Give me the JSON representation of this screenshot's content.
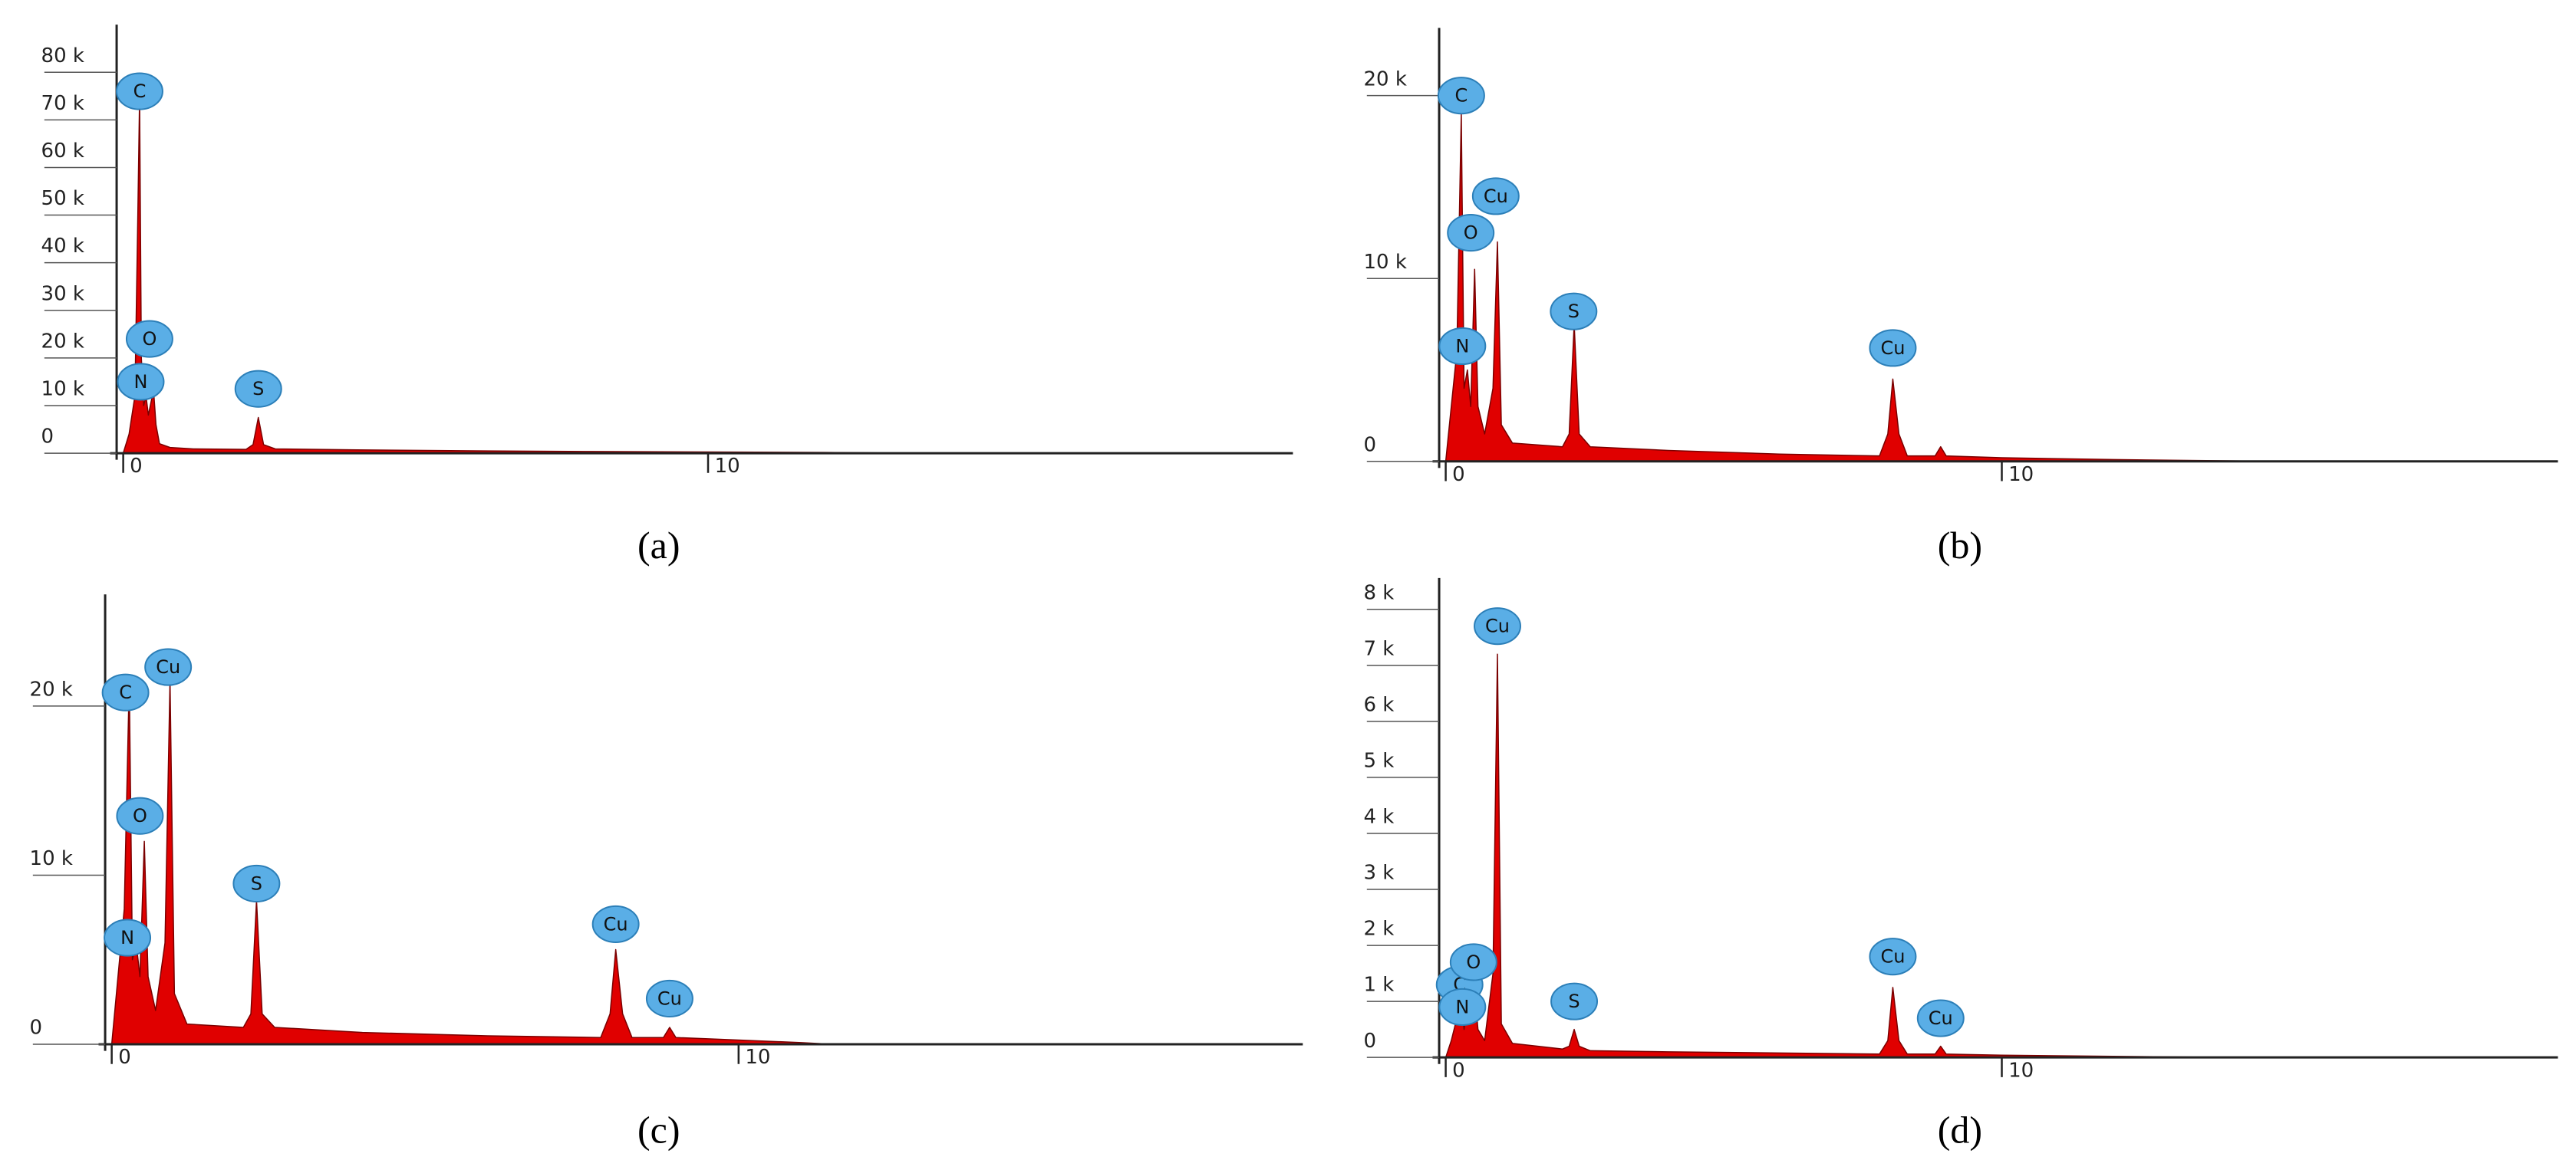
{
  "chart_data": [
    {
      "type": "area",
      "label": "(a)",
      "color": "#e00000",
      "x": [
        0,
        0.1,
        0.2,
        0.25,
        0.28,
        0.31,
        0.35,
        0.39,
        0.43,
        0.48,
        0.52,
        0.56,
        0.62,
        0.8,
        1.2,
        2.1,
        2.22,
        2.31,
        2.4,
        2.6,
        4,
        6,
        8,
        10,
        12,
        13.5
      ],
      "values": [
        0,
        4000,
        12000,
        50000,
        75000,
        20000,
        10000,
        12000,
        8000,
        11000,
        13000,
        6000,
        2000,
        1200,
        900,
        800,
        1800,
        7500,
        1800,
        900,
        700,
        500,
        350,
        250,
        150,
        0
      ],
      "xlim": [
        0,
        20
      ],
      "xticks": [
        0,
        10
      ],
      "ylim": [
        0,
        90000
      ],
      "yticks": [
        0,
        {
          "value": 10000,
          "label": "10 k"
        },
        {
          "value": 20000,
          "label": "20 k"
        },
        {
          "value": 30000,
          "label": "30 k"
        },
        {
          "value": 40000,
          "label": "40 k"
        },
        {
          "value": 50000,
          "label": "50 k"
        },
        {
          "value": 60000,
          "label": "60 k"
        },
        {
          "value": 70000,
          "label": "70 k"
        },
        {
          "value": 80000,
          "label": "80 k"
        }
      ],
      "annotations": [
        {
          "text": "C",
          "x": 0.28,
          "y": 76000
        },
        {
          "text": "O",
          "x": 0.45,
          "y": 24000
        },
        {
          "text": "N",
          "x": 0.3,
          "y": 15000
        },
        {
          "text": "S",
          "x": 2.31,
          "y": 13500
        }
      ]
    },
    {
      "type": "area",
      "label": "(b)",
      "color": "#e00000",
      "x": [
        0,
        0.1,
        0.2,
        0.28,
        0.33,
        0.39,
        0.45,
        0.52,
        0.58,
        0.7,
        0.85,
        0.93,
        1.0,
        1.2,
        2.1,
        2.22,
        2.31,
        2.4,
        2.6,
        4,
        6,
        7.8,
        7.95,
        8.04,
        8.15,
        8.3,
        8.8,
        8.9,
        9.0,
        10,
        12,
        15
      ],
      "values": [
        0,
        3000,
        6000,
        19000,
        4000,
        5000,
        3000,
        10500,
        3000,
        1500,
        4000,
        12000,
        2000,
        1000,
        800,
        1500,
        7500,
        1500,
        800,
        600,
        400,
        300,
        1500,
        4500,
        1500,
        300,
        300,
        800,
        300,
        200,
        100,
        0
      ],
      "xlim": [
        0,
        20
      ],
      "xticks": [
        0,
        10
      ],
      "ylim": [
        0,
        23700
      ],
      "yticks": [
        0,
        {
          "value": 10000,
          "label": "10 k"
        },
        {
          "value": 20000,
          "label": "20 k"
        }
      ],
      "annotations": [
        {
          "text": "C",
          "x": 0.28,
          "y": 20000
        },
        {
          "text": "Cu",
          "x": 0.9,
          "y": 14500
        },
        {
          "text": "O",
          "x": 0.45,
          "y": 12500
        },
        {
          "text": "N",
          "x": 0.3,
          "y": 6300
        },
        {
          "text": "S",
          "x": 2.3,
          "y": 8200
        },
        {
          "text": "Cu",
          "x": 8.04,
          "y": 6200
        }
      ]
    },
    {
      "type": "area",
      "label": "(c)",
      "color": "#e00000",
      "x": [
        0,
        0.1,
        0.2,
        0.28,
        0.33,
        0.39,
        0.45,
        0.52,
        0.58,
        0.7,
        0.85,
        0.93,
        1.0,
        1.2,
        2.1,
        2.22,
        2.31,
        2.4,
        2.6,
        4,
        6,
        7.8,
        7.95,
        8.04,
        8.15,
        8.3,
        8.8,
        8.9,
        9.0,
        10,
        11,
        11.5
      ],
      "values": [
        0,
        4000,
        8000,
        21500,
        5000,
        6000,
        4000,
        12000,
        4000,
        2000,
        6000,
        21500,
        3000,
        1200,
        1000,
        1800,
        8500,
        1800,
        1000,
        700,
        500,
        400,
        1800,
        5600,
        1800,
        400,
        400,
        1000,
        400,
        250,
        100,
        0
      ],
      "xlim": [
        0,
        19
      ],
      "xticks": [
        0,
        10
      ],
      "ylim": [
        0,
        26600
      ],
      "yticks": [
        0,
        {
          "value": 10000,
          "label": "10 k"
        },
        {
          "value": 20000,
          "label": "20 k"
        }
      ],
      "annotations": [
        {
          "text": "C",
          "x": 0.22,
          "y": 20800
        },
        {
          "text": "Cu",
          "x": 0.9,
          "y": 22300
        },
        {
          "text": "O",
          "x": 0.45,
          "y": 13500
        },
        {
          "text": "N",
          "x": 0.25,
          "y": 6300
        },
        {
          "text": "S",
          "x": 2.31,
          "y": 9500
        },
        {
          "text": "Cu",
          "x": 8.04,
          "y": 7100
        },
        {
          "text": "Cu",
          "x": 8.9,
          "y": 2700
        }
      ]
    },
    {
      "type": "area",
      "label": "(d)",
      "color": "#e00000",
      "x": [
        0,
        0.1,
        0.2,
        0.28,
        0.33,
        0.39,
        0.45,
        0.52,
        0.58,
        0.7,
        0.85,
        0.93,
        1.0,
        1.2,
        2.1,
        2.22,
        2.31,
        2.4,
        2.6,
        4,
        6,
        7.8,
        7.95,
        8.04,
        8.15,
        8.3,
        8.8,
        8.9,
        9.0,
        10,
        12,
        14
      ],
      "values": [
        0,
        300,
        700,
        1000,
        500,
        900,
        600,
        1200,
        500,
        300,
        1500,
        7200,
        600,
        250,
        150,
        200,
        500,
        200,
        120,
        100,
        80,
        60,
        300,
        1250,
        300,
        60,
        60,
        200,
        60,
        40,
        20,
        0
      ],
      "xlim": [
        0,
        20
      ],
      "xticks": [
        0,
        10
      ],
      "ylim": [
        0,
        8560
      ],
      "yticks": [
        0,
        {
          "value": 1000,
          "label": "1 k"
        },
        {
          "value": 2000,
          "label": "2 k"
        },
        {
          "value": 3000,
          "label": "3 k"
        },
        {
          "value": 4000,
          "label": "4 k"
        },
        {
          "value": 5000,
          "label": "5 k"
        },
        {
          "value": 6000,
          "label": "6 k"
        },
        {
          "value": 7000,
          "label": "7 k"
        },
        {
          "value": 8000,
          "label": "8 k"
        }
      ],
      "annotations": [
        {
          "text": "Cu",
          "x": 0.93,
          "y": 7700
        },
        {
          "text": "C",
          "x": 0.25,
          "y": 1300
        },
        {
          "text": "O",
          "x": 0.5,
          "y": 1700
        },
        {
          "text": "N",
          "x": 0.3,
          "y": 900
        },
        {
          "text": "S",
          "x": 2.31,
          "y": 1000
        },
        {
          "text": "Cu",
          "x": 8.04,
          "y": 1800
        },
        {
          "text": "Cu",
          "x": 8.9,
          "y": 700
        }
      ]
    }
  ]
}
